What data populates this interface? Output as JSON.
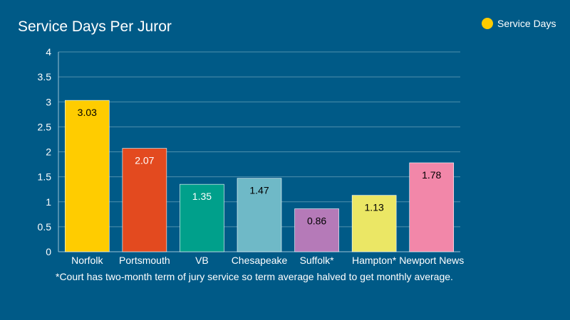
{
  "chart_data": {
    "type": "bar",
    "title": "Service Days Per Juror",
    "categories": [
      "Norfolk",
      "Portsmouth",
      "VB",
      "Chesapeake",
      "Suffolk*",
      "Hampton*",
      "Newport News"
    ],
    "series": [
      {
        "name": "Service Days",
        "values": [
          3.03,
          2.07,
          1.35,
          1.47,
          0.86,
          1.13,
          1.78
        ],
        "colors": [
          "#ffcc00",
          "#e34a1f",
          "#00a08b",
          "#6fb9c7",
          "#b57ab8",
          "#ebe765",
          "#f287a9"
        ]
      }
    ],
    "data_labels": [
      "3.03",
      "2.07",
      "1.35",
      "1.47",
      "0.86",
      "1.13",
      "1.78"
    ],
    "label_colors": [
      "#000000",
      "#ffffff",
      "#ffffff",
      "#000000",
      "#000000",
      "#000000",
      "#000000"
    ],
    "yticks": [
      "0",
      "0.5",
      "1",
      "1.5",
      "2",
      "2.5",
      "3",
      "3.5",
      "4"
    ],
    "ylim": [
      0,
      4
    ],
    "grid": true,
    "legend_position": "top-right",
    "legend_color": "#ffcc00",
    "footnote": "*Court has two-month term of jury service so term average halved to get monthly average."
  }
}
